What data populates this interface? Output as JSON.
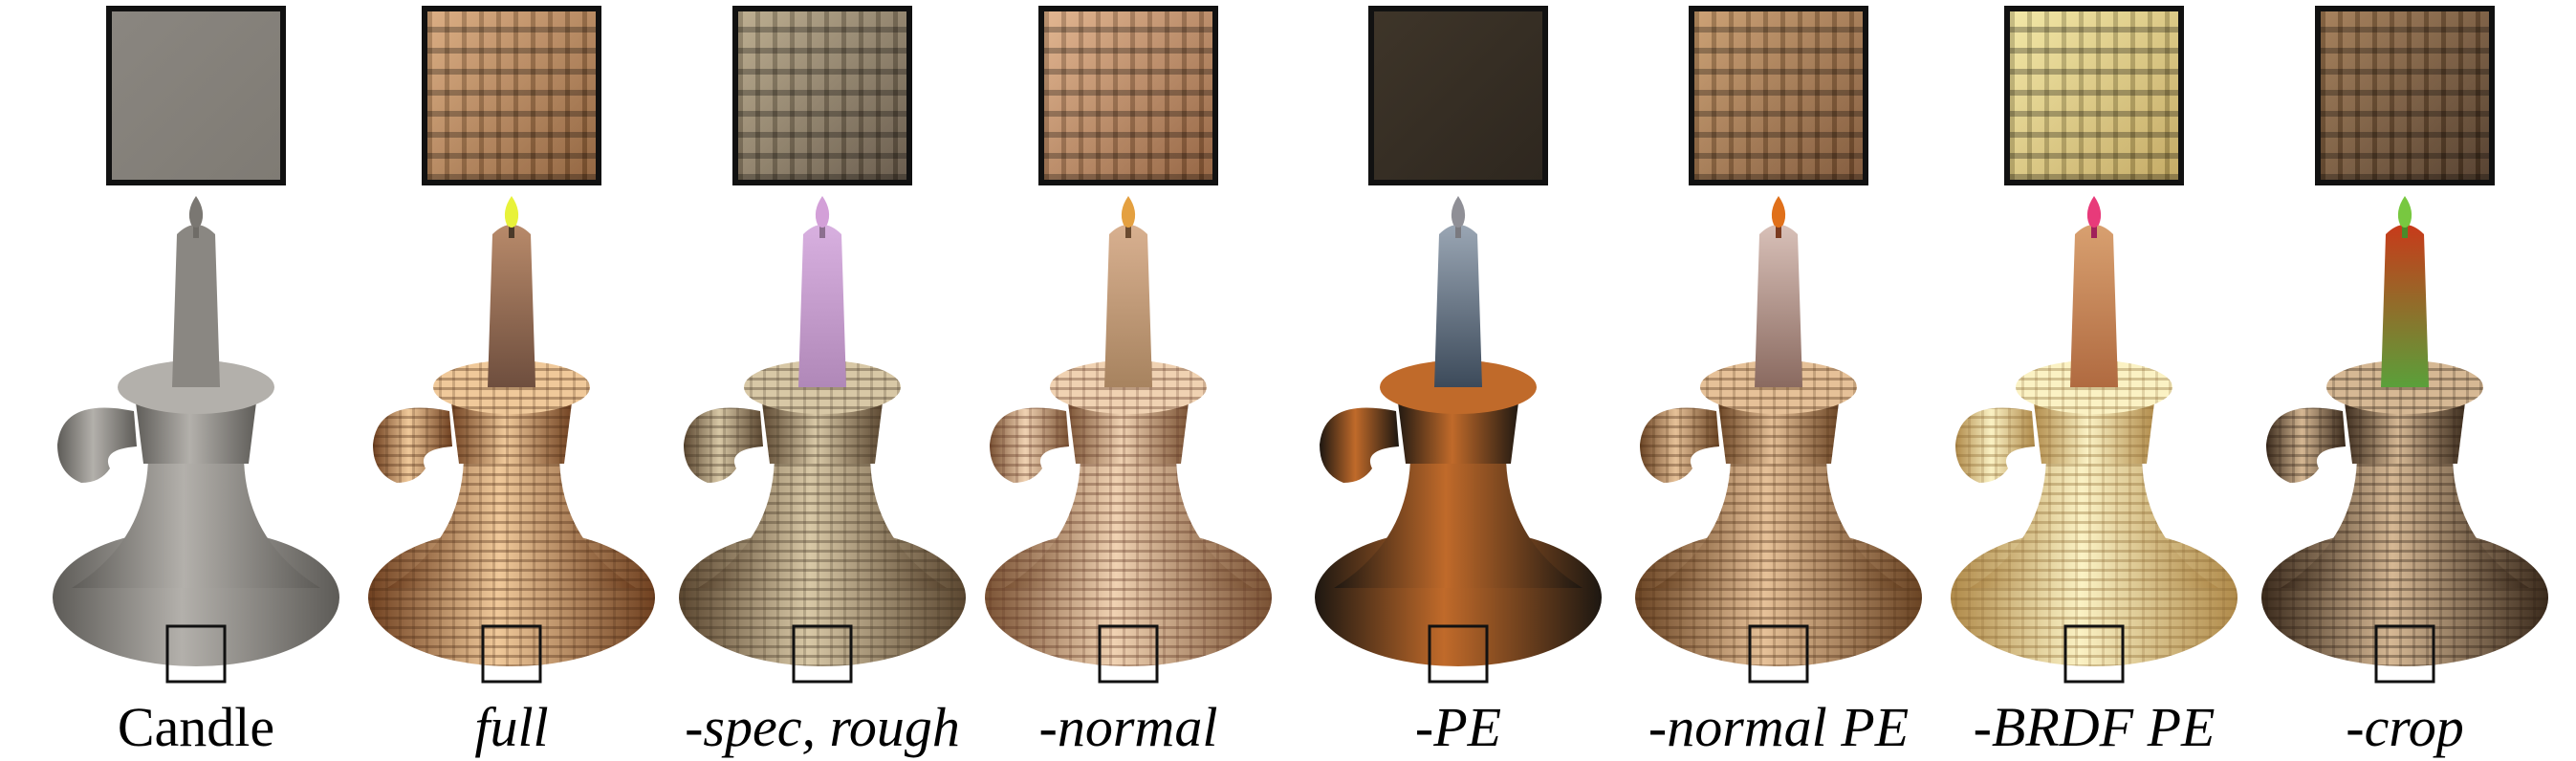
{
  "panels": [
    {
      "id": "candle",
      "caption": "Candle",
      "italic": false,
      "swatch": "#8a8680",
      "swatch2": "#7f7b74",
      "body": "#8a8782",
      "body_dark": "#5d5b57",
      "body_light": "#b3b0ab",
      "wick": "#6f6c67",
      "flame": "#7a7772",
      "candle_top": "#8a8782",
      "candle_bottom": "#8a8782",
      "weave": false,
      "weave_color": "#000000"
    },
    {
      "id": "full",
      "caption": "full",
      "italic": true,
      "swatch": "#d9a87a",
      "swatch2": "#8a5a33",
      "body": "#c48a55",
      "body_dark": "#6f4020",
      "body_light": "#f0c99a",
      "wick": "#4b3a2a",
      "flame": "#e8f23a",
      "candle_top": "#b88a6a",
      "candle_bottom": "#6e4e3e",
      "weave": true,
      "weave_color": "#4a2810"
    },
    {
      "id": "spec-rough",
      "caption": "-spec, rough",
      "italic": true,
      "swatch": "#b8a888",
      "swatch2": "#5e5040",
      "body": "#a9916c",
      "body_dark": "#5a4630",
      "body_light": "#d8c8a6",
      "wick": "#8c6f8f",
      "flame": "#d3a0d8",
      "candle_top": "#d8b0e0",
      "candle_bottom": "#b088b8",
      "weave": true,
      "weave_color": "#3f3020"
    },
    {
      "id": "normal",
      "caption": "-normal",
      "italic": true,
      "swatch": "#e0b088",
      "swatch2": "#8d5a36",
      "body": "#c9a07a",
      "body_dark": "#7a5234",
      "body_light": "#f0d2b2",
      "wick": "#6a4a30",
      "flame": "#e4a040",
      "candle_top": "#d8b090",
      "candle_bottom": "#a7835f",
      "weave": true,
      "weave_color": "#5a3420"
    },
    {
      "id": "pe",
      "caption": "-PE",
      "italic": true,
      "swatch": "#3e3529",
      "swatch2": "#2e271f",
      "body": "#4d3a25",
      "body_dark": "#1d1711",
      "body_light": "#c06a2a",
      "wick": "#7a7a80",
      "flame": "#8f8f96",
      "candle_top": "#9aa6b4",
      "candle_bottom": "#3c4a5a",
      "weave": false,
      "weave_color": "#000000"
    },
    {
      "id": "normal-pe",
      "caption": "-normal PE",
      "italic": true,
      "swatch": "#c89a6a",
      "swatch2": "#7a5030",
      "body": "#b8865a",
      "body_dark": "#6a4424",
      "body_light": "#e6c198",
      "wick": "#7a3a20",
      "flame": "#e0701a",
      "candle_top": "#d8c0b8",
      "candle_bottom": "#8a6a60",
      "weave": true,
      "weave_color": "#4b2c14"
    },
    {
      "id": "brdf-pe",
      "caption": "-BRDF PE",
      "italic": true,
      "swatch": "#f2e6a0",
      "swatch2": "#c0a45a",
      "body": "#e6cd8a",
      "body_dark": "#b08a4a",
      "body_light": "#fbf2c4",
      "wick": "#a0205a",
      "flame": "#e83a7a",
      "candle_top": "#d8a070",
      "candle_bottom": "#b06a40",
      "weave": true,
      "weave_color": "#8a6630"
    },
    {
      "id": "crop",
      "caption": "-crop",
      "italic": true,
      "swatch": "#a07850",
      "swatch2": "#4a3422",
      "body": "#8a6a4a",
      "body_dark": "#3a2a1c",
      "body_light": "#d6b894",
      "wick": "#4a8a2a",
      "flame": "#78c840",
      "candle_top": "#c83a1a",
      "candle_bottom": "#5aa03a",
      "weave": true,
      "weave_color": "#2a1c10"
    }
  ]
}
